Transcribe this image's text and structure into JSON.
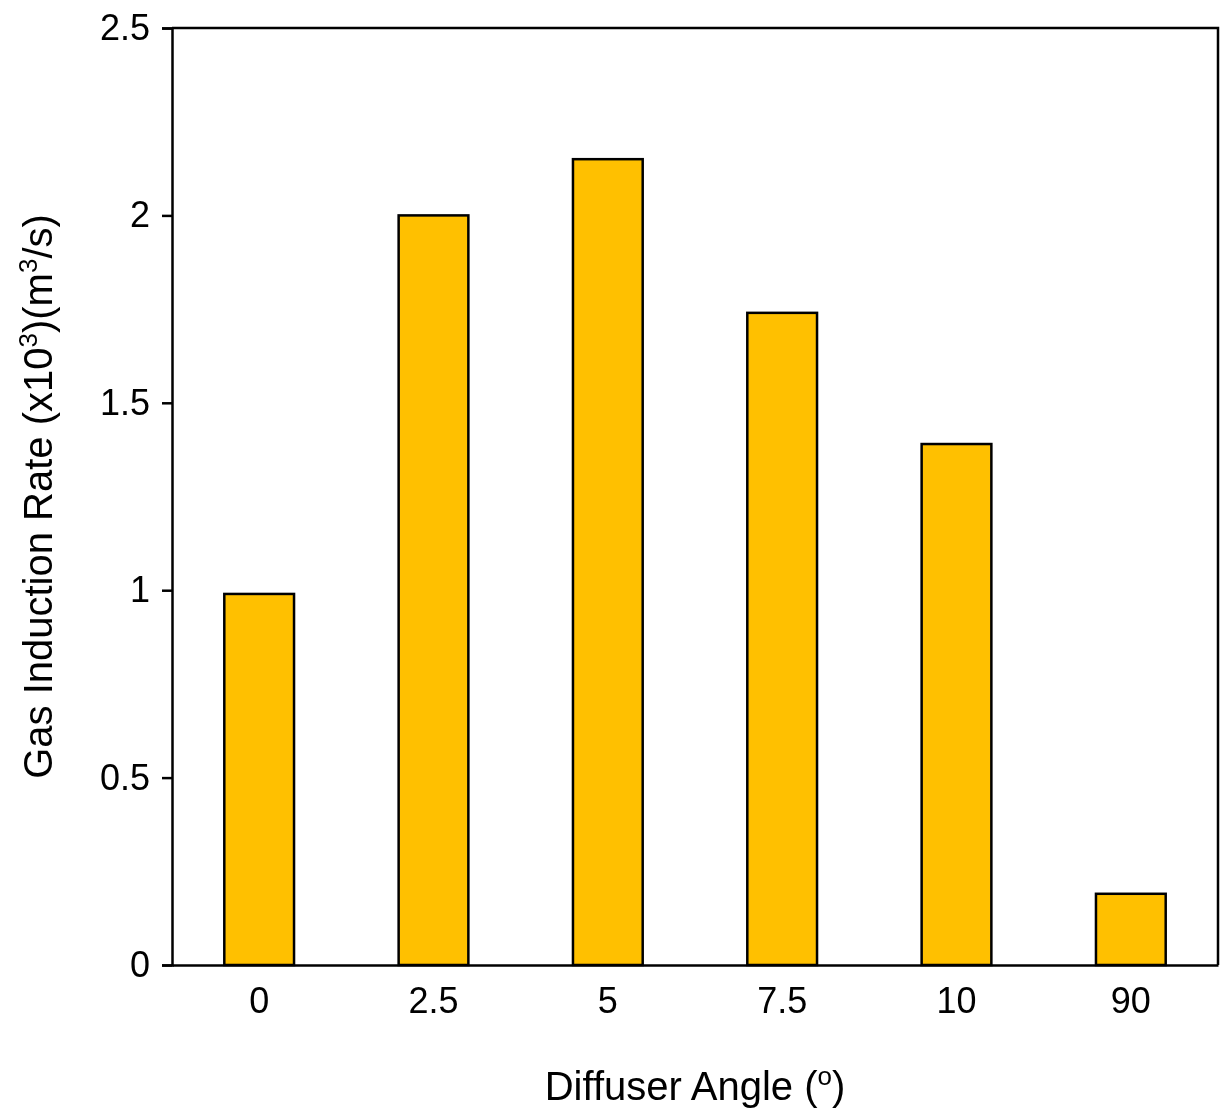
{
  "chart_data": {
    "type": "bar",
    "xlabel": "Diffuser Angle ($^{o}$)",
    "ylabel": "Gas Induction Rate (x10$^{3}$)(m$^{3}$/s)",
    "categories": [
      "0",
      "2.5",
      "5",
      "7.5",
      "10",
      "90"
    ],
    "values": [
      0.99,
      2.0,
      2.15,
      1.74,
      1.39,
      0.19
    ],
    "color": "#ffc000",
    "ylim": [
      0,
      2.5
    ],
    "yticks": [
      0,
      0.5,
      1,
      1.5,
      2,
      2.5
    ],
    "grid": false
  }
}
